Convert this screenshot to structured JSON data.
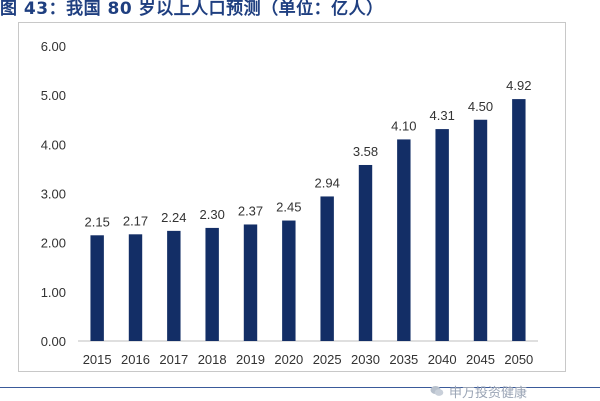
{
  "caption": "图 43：我国 80 岁以上人口预测（单位：亿人）",
  "watermark": "申万投资健康",
  "colors": {
    "bar": "#132e66",
    "axis": "#bfbfbf",
    "text": "#333333",
    "caption": "#1f3f80"
  },
  "chart_data": {
    "type": "bar",
    "categories": [
      "2015",
      "2016",
      "2017",
      "2018",
      "2019",
      "2020",
      "2025",
      "2030",
      "2035",
      "2040",
      "2045",
      "2050"
    ],
    "values": [
      2.15,
      2.17,
      2.24,
      2.3,
      2.37,
      2.45,
      2.94,
      3.58,
      4.1,
      4.31,
      4.5,
      4.92
    ],
    "data_labels": [
      "2.15",
      "2.17",
      "2.24",
      "2.30",
      "2.37",
      "2.45",
      "2.94",
      "3.58",
      "4.10",
      "4.31",
      "4.50",
      "4.92"
    ],
    "yticks": [
      "0.00",
      "1.00",
      "2.00",
      "3.00",
      "4.00",
      "5.00",
      "6.00"
    ],
    "ylim": [
      0,
      6
    ],
    "grid": false,
    "legend": "none"
  }
}
